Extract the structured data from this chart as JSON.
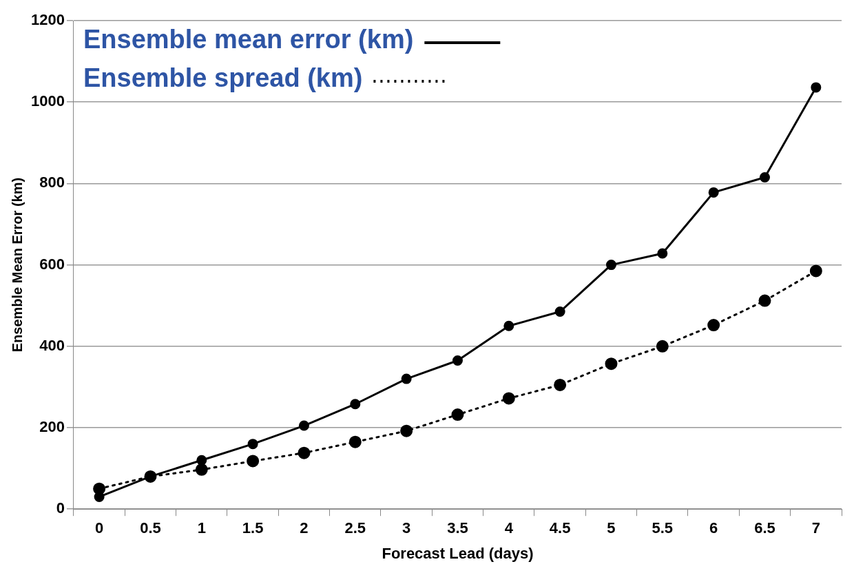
{
  "chart_data": {
    "type": "line",
    "xlabel": "Forecast Lead (days)",
    "ylabel": "Ensemble Mean Error (km)",
    "categories": [
      "0",
      "0.5",
      "1",
      "1.5",
      "2",
      "2.5",
      "3",
      "3.5",
      "4",
      "4.5",
      "5",
      "5.5",
      "6",
      "6.5",
      "7"
    ],
    "series": [
      {
        "name": "Ensemble mean error (km)",
        "color": "#000000",
        "line_style": "solid",
        "values": [
          30,
          80,
          120,
          160,
          205,
          258,
          320,
          365,
          450,
          485,
          600,
          628,
          778,
          815,
          1036
        ]
      },
      {
        "name": "Ensemble spread (km)",
        "color": "#000000",
        "line_style": "dotted",
        "values": [
          50,
          80,
          97,
          118,
          138,
          165,
          192,
          232,
          272,
          305,
          357,
          400,
          452,
          512,
          585
        ]
      }
    ],
    "ylim": [
      0,
      1200
    ],
    "yticks": [
      0,
      200,
      400,
      600,
      800,
      1000,
      1200
    ],
    "grid": "y",
    "legend": "top left",
    "marker": "circle"
  }
}
